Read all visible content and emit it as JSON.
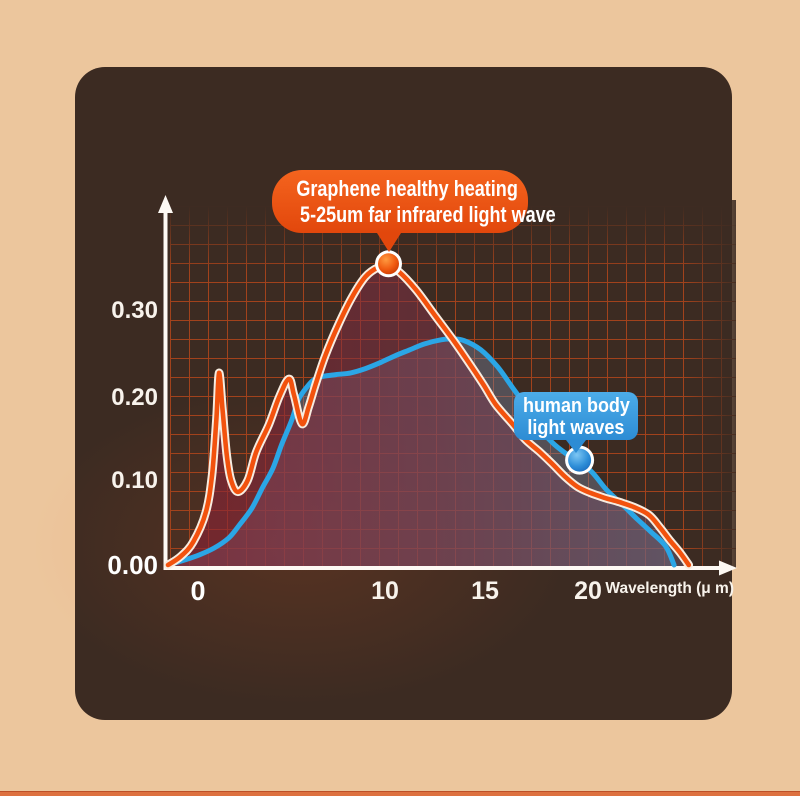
{
  "page": {
    "background_color": "#ecc69d",
    "bottom_divider_color": "#dd7140",
    "card_color": "#3c2b22"
  },
  "callouts": {
    "graphene": {
      "line1": "Graphene healthy heating",
      "line2": "5-25um far infrared light wave",
      "color": "#e8500f"
    },
    "human_body": {
      "line1": "human body",
      "line2": "light waves",
      "color": "#3fa0e0"
    }
  },
  "chart_data": {
    "type": "area",
    "title": "",
    "xlabel": "Wavelength (μ m)",
    "ylabel": "",
    "xlim": [
      0,
      25.5
    ],
    "ylim": [
      0,
      0.4
    ],
    "grid": true,
    "grid_color": "#a2421c",
    "x_ticks": [
      "0",
      "10",
      "15",
      "20"
    ],
    "x_tick_values": [
      0,
      10,
      15,
      20
    ],
    "y_ticks": [
      "0.30",
      "0.20",
      "0.10",
      "0.00"
    ],
    "y_tick_values": [
      0.3,
      0.2,
      0.1,
      0.0
    ],
    "series": [
      {
        "name": "graphene",
        "label": "Graphene healthy heating 5-25um far infrared light wave",
        "color": "#f2520e",
        "fill": "maroon-gradient",
        "points": [
          [
            0,
            0
          ],
          [
            0.6,
            0.01
          ],
          [
            1.2,
            0.027
          ],
          [
            1.8,
            0.062
          ],
          [
            2.1,
            0.106
          ],
          [
            2.3,
            0.17
          ],
          [
            2.43,
            0.226
          ],
          [
            2.6,
            0.182
          ],
          [
            2.8,
            0.129
          ],
          [
            3.0,
            0.1
          ],
          [
            3.33,
            0.086
          ],
          [
            3.8,
            0.1
          ],
          [
            4.2,
            0.133
          ],
          [
            4.8,
            0.165
          ],
          [
            5.3,
            0.198
          ],
          [
            5.76,
            0.219
          ],
          [
            6.0,
            0.2
          ],
          [
            6.38,
            0.166
          ],
          [
            6.7,
            0.186
          ],
          [
            7.05,
            0.214
          ],
          [
            7.5,
            0.247
          ],
          [
            8.1,
            0.282
          ],
          [
            8.76,
            0.315
          ],
          [
            9.4,
            0.339
          ],
          [
            10.0,
            0.35
          ],
          [
            10.5,
            0.352
          ],
          [
            11.0,
            0.345
          ],
          [
            11.8,
            0.324
          ],
          [
            12.7,
            0.294
          ],
          [
            13.6,
            0.264
          ],
          [
            14.3,
            0.239
          ],
          [
            15.0,
            0.213
          ],
          [
            15.6,
            0.189
          ],
          [
            16.4,
            0.166
          ],
          [
            17.0,
            0.148
          ],
          [
            17.7,
            0.133
          ],
          [
            18.3,
            0.119
          ],
          [
            18.9,
            0.104
          ],
          [
            19.5,
            0.092
          ],
          [
            20.1,
            0.085
          ],
          [
            20.8,
            0.079
          ],
          [
            21.5,
            0.074
          ],
          [
            22.2,
            0.068
          ],
          [
            22.9,
            0.059
          ],
          [
            23.4,
            0.045
          ],
          [
            23.9,
            0.029
          ],
          [
            24.4,
            0.014
          ],
          [
            24.8,
            0.0
          ]
        ]
      },
      {
        "name": "human_body",
        "label": "human body light waves",
        "color": "#2ba6e6",
        "fill": "slate-gradient",
        "points": [
          [
            0,
            0
          ],
          [
            0.8,
            0.006
          ],
          [
            1.5,
            0.012
          ],
          [
            2.2,
            0.02
          ],
          [
            2.9,
            0.032
          ],
          [
            3.4,
            0.047
          ],
          [
            4.0,
            0.067
          ],
          [
            4.5,
            0.091
          ],
          [
            5.0,
            0.114
          ],
          [
            5.4,
            0.141
          ],
          [
            5.9,
            0.171
          ],
          [
            6.2,
            0.194
          ],
          [
            6.6,
            0.209
          ],
          [
            7.0,
            0.219
          ],
          [
            7.4,
            0.222
          ],
          [
            8.0,
            0.224
          ],
          [
            8.7,
            0.226
          ],
          [
            9.4,
            0.231
          ],
          [
            10.1,
            0.238
          ],
          [
            10.8,
            0.246
          ],
          [
            11.5,
            0.253
          ],
          [
            12.2,
            0.26
          ],
          [
            13.0,
            0.265
          ],
          [
            13.5,
            0.266
          ],
          [
            14.1,
            0.264
          ],
          [
            14.9,
            0.253
          ],
          [
            15.7,
            0.233
          ],
          [
            16.4,
            0.209
          ],
          [
            17.1,
            0.185
          ],
          [
            17.7,
            0.161
          ],
          [
            18.3,
            0.144
          ],
          [
            18.9,
            0.132
          ],
          [
            19.6,
            0.121
          ],
          [
            20.2,
            0.109
          ],
          [
            20.9,
            0.088
          ],
          [
            21.6,
            0.072
          ],
          [
            22.3,
            0.055
          ],
          [
            23.0,
            0.039
          ],
          [
            23.7,
            0.022
          ],
          [
            24.1,
            0.0
          ]
        ]
      }
    ],
    "markers": [
      {
        "series": "graphene",
        "x": 10.5,
        "y": 0.352
      },
      {
        "series": "human_body",
        "x": 19.6,
        "y": 0.121
      }
    ],
    "legend_position": "callout-bubbles"
  }
}
